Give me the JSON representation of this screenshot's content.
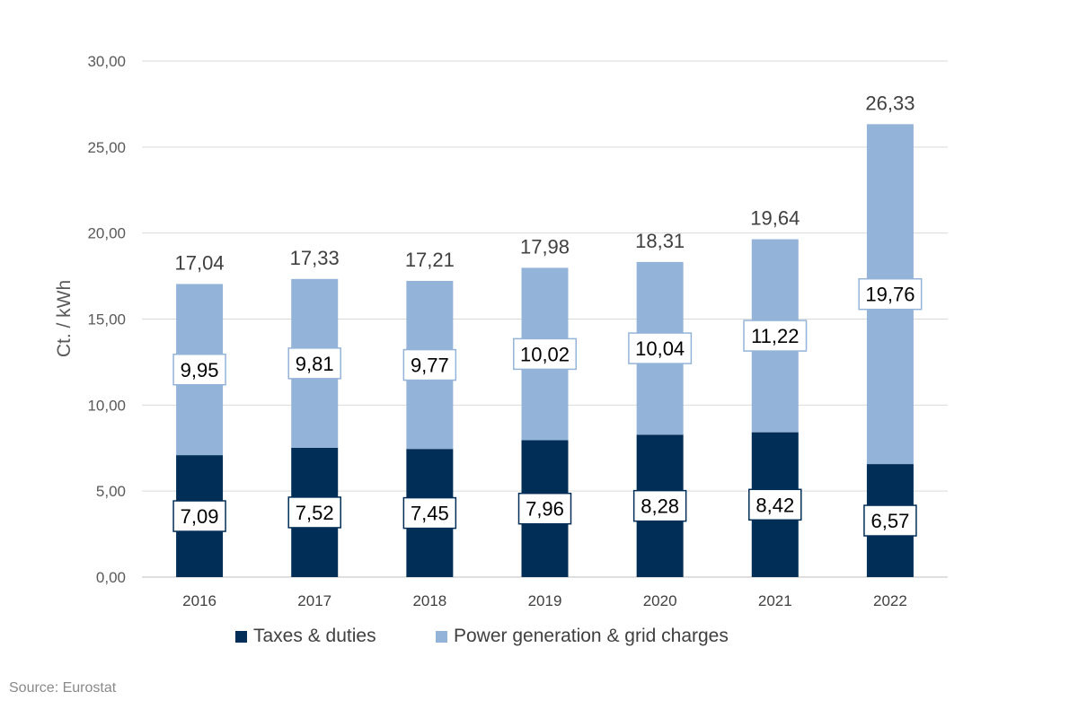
{
  "chart_data": {
    "type": "bar",
    "stacked": true,
    "categories": [
      "2016",
      "2017",
      "2018",
      "2019",
      "2020",
      "2021",
      "2022"
    ],
    "series": [
      {
        "name": "Taxes & duties",
        "values": [
          7.09,
          7.52,
          7.45,
          7.96,
          8.28,
          8.42,
          6.57
        ],
        "color": "#002e57"
      },
      {
        "name": "Power generation & grid charges",
        "values": [
          9.95,
          9.81,
          9.77,
          10.02,
          10.04,
          11.22,
          19.76
        ],
        "color": "#94b3d9"
      }
    ],
    "segment_labels": [
      [
        "7,09",
        "7,52",
        "7,45",
        "7,96",
        "8,28",
        "8,42",
        "6,57"
      ],
      [
        "9,95",
        "9,81",
        "9,77",
        "10,02",
        "10,04",
        "11,22",
        "19,76"
      ]
    ],
    "totals": [
      17.04,
      17.33,
      17.21,
      17.98,
      18.31,
      19.64,
      26.33
    ],
    "total_labels": [
      "17,04",
      "17,33",
      "17,21",
      "17,98",
      "18,31",
      "19,64",
      "26,33"
    ],
    "ylabel": "Ct. / kWh",
    "xlabel": "",
    "ylim": [
      0,
      30
    ],
    "yticks": [
      0,
      5,
      10,
      15,
      20,
      25,
      30
    ],
    "ytick_labels": [
      "0,00",
      "5,00",
      "10,00",
      "15,00",
      "20,00",
      "25,00",
      "30,00"
    ],
    "grid": true,
    "legend_position": "bottom"
  },
  "source_note": "Source: Eurostat"
}
